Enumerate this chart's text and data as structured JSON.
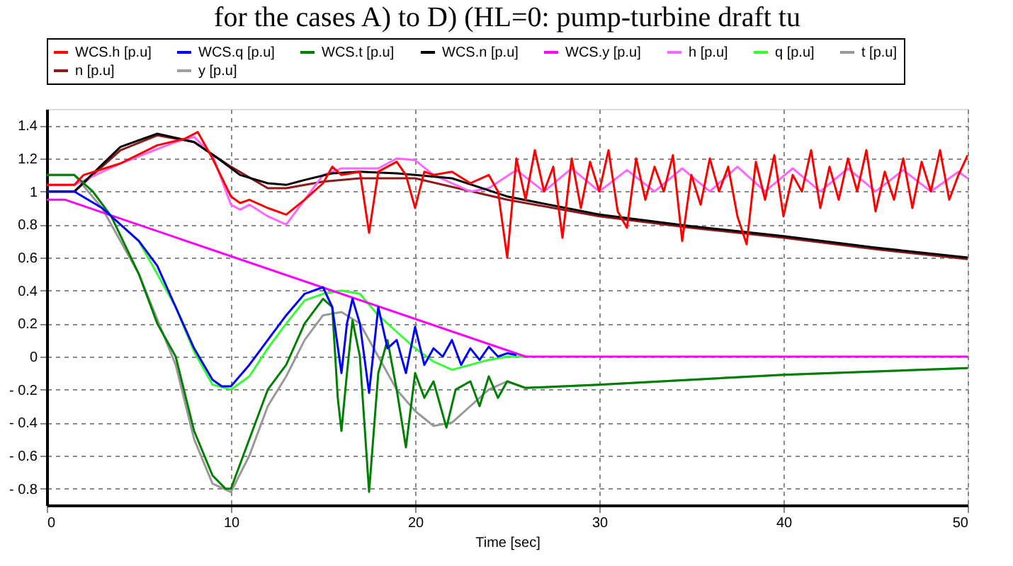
{
  "chart_data": {
    "type": "line",
    "title": "for the cases A) to D) (HL=0: pump-turbine draft tu",
    "xlabel": "Time  [sec]",
    "xlim": [
      0,
      50
    ],
    "xticks": [
      0,
      10,
      20,
      30,
      40,
      50
    ],
    "ylim": [
      -0.9,
      1.5
    ],
    "yticks": [
      {
        "value": -0.8,
        "label": "- 0.8"
      },
      {
        "value": -0.6,
        "label": "- 0.6"
      },
      {
        "value": -0.4,
        "label": "- 0.4"
      },
      {
        "value": -0.2,
        "label": "- 0.2"
      },
      0,
      0.2,
      0.4,
      0.6,
      0.8,
      1,
      1.2,
      1.4
    ],
    "grid": true,
    "legend": "top",
    "line_style": "solid",
    "marker": "none",
    "series": [
      {
        "name": "WCS.h [p.u]",
        "color": "#ff0000",
        "x": [
          0,
          1.5,
          2,
          4,
          6,
          7.5,
          8.2,
          9,
          10,
          10.5,
          11,
          12,
          13,
          14,
          15,
          15.5,
          16,
          17,
          17.5,
          18,
          19,
          19.5,
          20,
          20.5,
          21,
          22,
          23,
          24,
          24.5,
          25,
          25.5,
          26,
          26.5,
          27,
          27.5,
          28,
          28.5,
          29,
          29.5,
          30,
          30.5,
          31,
          31.5,
          32,
          32.5,
          33,
          33.5,
          34,
          34.5,
          35,
          35.5,
          36,
          36.5,
          37,
          37.5,
          38,
          38.5,
          39,
          39.5,
          40,
          40.5,
          41,
          41.5,
          42,
          42.5,
          43,
          43.5,
          44,
          44.5,
          45,
          45.5,
          46,
          46.5,
          47,
          47.5,
          48,
          48.5,
          49,
          49.5,
          50
        ],
        "values": [
          1.04,
          1.04,
          1.1,
          1.17,
          1.28,
          1.32,
          1.36,
          1.2,
          0.97,
          0.93,
          0.95,
          0.9,
          0.86,
          0.95,
          1.05,
          1.15,
          1.1,
          1.12,
          0.75,
          1.12,
          1.18,
          1.1,
          0.9,
          1.12,
          1.1,
          1.12,
          1.05,
          1.1,
          1.0,
          0.6,
          1.2,
          0.95,
          1.25,
          1.0,
          1.15,
          0.72,
          1.2,
          0.9,
          1.18,
          1.0,
          1.25,
          0.88,
          0.78,
          1.2,
          0.95,
          1.15,
          1.0,
          1.22,
          0.7,
          1.1,
          0.92,
          1.2,
          1.0,
          1.15,
          0.85,
          0.68,
          1.18,
          0.95,
          1.22,
          0.85,
          1.1,
          1.0,
          1.25,
          0.9,
          1.15,
          0.95,
          1.2,
          1.0,
          1.25,
          0.88,
          1.12,
          0.95,
          1.2,
          0.9,
          1.18,
          1.0,
          1.25,
          0.95,
          1.1,
          1.22
        ]
      },
      {
        "name": "WCS.q [p.u]",
        "color": "#0000ff",
        "x": [
          0,
          1.5,
          3,
          5,
          6,
          7,
          8,
          9,
          9.5,
          10,
          11,
          12,
          13,
          14,
          15,
          15.5,
          16,
          16.3,
          16.6,
          17,
          17.5,
          18,
          18.5,
          19,
          19.5,
          20,
          20.5,
          21,
          21.5,
          22,
          22.5,
          23,
          23.5,
          24,
          24.5,
          25,
          25.5
        ],
        "values": [
          1.0,
          1.0,
          0.9,
          0.7,
          0.55,
          0.3,
          0.05,
          -0.14,
          -0.18,
          -0.18,
          -0.05,
          0.1,
          0.25,
          0.38,
          0.42,
          0.3,
          -0.1,
          0.2,
          0.35,
          0.2,
          -0.22,
          0.3,
          0.05,
          0.1,
          -0.1,
          0.18,
          -0.05,
          0.05,
          0.0,
          0.1,
          -0.05,
          0.05,
          -0.02,
          0.06,
          0.0,
          0.02,
          0.01
        ]
      },
      {
        "name": "WCS.t [p.u]",
        "color": "#008000",
        "x": [
          0,
          1.5,
          2.5,
          3.5,
          5,
          6,
          7,
          8,
          9,
          9.7,
          10,
          11,
          12,
          13,
          14,
          15,
          15.5,
          15.8,
          16,
          16.3,
          16.6,
          17,
          17.5,
          18,
          18.5,
          19,
          19.5,
          20,
          20.5,
          21,
          21.7,
          22.2,
          23,
          23.5,
          24,
          24.5,
          25,
          26,
          30,
          35,
          40,
          45,
          50
        ],
        "values": [
          1.1,
          1.1,
          1.0,
          0.85,
          0.5,
          0.2,
          0.0,
          -0.45,
          -0.72,
          -0.8,
          -0.8,
          -0.5,
          -0.2,
          -0.05,
          0.2,
          0.35,
          0.3,
          -0.25,
          -0.45,
          -0.1,
          0.22,
          0.0,
          -0.82,
          -0.1,
          0.1,
          -0.2,
          -0.55,
          -0.1,
          -0.25,
          -0.15,
          -0.43,
          -0.2,
          -0.15,
          -0.3,
          -0.12,
          -0.25,
          -0.15,
          -0.19,
          -0.17,
          -0.14,
          -0.11,
          -0.09,
          -0.07
        ]
      },
      {
        "name": "WCS.n [p.u]",
        "color": "#000000",
        "x": [
          0,
          1.5,
          4,
          6,
          8,
          9.3,
          10.5,
          12,
          13,
          14,
          15.5,
          17,
          19,
          20,
          22,
          25,
          30,
          35,
          40,
          45,
          50
        ],
        "values": [
          1.0,
          1.0,
          1.27,
          1.35,
          1.3,
          1.2,
          1.1,
          1.05,
          1.04,
          1.07,
          1.11,
          1.12,
          1.11,
          1.1,
          1.08,
          0.97,
          0.86,
          0.79,
          0.73,
          0.66,
          0.6
        ]
      },
      {
        "name": "WCS.y [p.u]",
        "color": "#ff00ff",
        "x": [
          0,
          1,
          26,
          50
        ],
        "values": [
          0.95,
          0.95,
          0.0,
          0.0
        ]
      },
      {
        "name": "h [p.u]",
        "color": "#ff66ff",
        "x": [
          0,
          1.5,
          4,
          7,
          8,
          9,
          10,
          10.5,
          11,
          12,
          13,
          14,
          15,
          16,
          18,
          19,
          20,
          21,
          22,
          23,
          24,
          25.5,
          27,
          28.5,
          30,
          31.5,
          33,
          34.5,
          36,
          37.5,
          39,
          40.5,
          42,
          43.5,
          45,
          46.5,
          48,
          49.5,
          50
        ],
        "values": [
          1.04,
          1.04,
          1.17,
          1.3,
          1.33,
          1.22,
          0.92,
          0.89,
          0.92,
          0.85,
          0.8,
          0.95,
          1.1,
          1.14,
          1.14,
          1.2,
          1.19,
          1.1,
          1.05,
          1.0,
          1.02,
          1.13,
          1.0,
          1.14,
          1.0,
          1.13,
          1.0,
          1.14,
          1.0,
          1.15,
          1.0,
          1.14,
          1.0,
          1.14,
          1.0,
          1.13,
          1.0,
          1.12,
          1.08
        ]
      },
      {
        "name": "q [p.u]",
        "color": "#33ff33",
        "x": [
          null,
          null,
          3,
          5,
          7,
          8,
          9,
          10,
          11,
          12,
          13,
          14,
          15,
          16,
          17,
          18,
          19,
          20,
          21,
          22,
          23,
          24,
          25,
          26
        ],
        "values": [
          null,
          null,
          0.9,
          0.7,
          0.3,
          0.03,
          -0.17,
          -0.2,
          -0.12,
          0.05,
          0.2,
          0.34,
          0.38,
          0.4,
          0.38,
          0.25,
          0.15,
          0.05,
          -0.03,
          -0.08,
          -0.05,
          -0.02,
          0.0,
          0.0
        ]
      },
      {
        "name": "t [p.u]",
        "color": "#999999",
        "x": [
          0,
          1.5,
          3,
          5,
          7,
          8,
          9,
          10,
          11,
          12,
          13,
          14,
          15,
          16,
          17,
          18,
          19,
          20,
          21,
          22,
          23,
          24,
          25,
          26,
          30,
          40,
          50
        ],
        "values": [
          1.1,
          1.1,
          0.9,
          0.5,
          -0.05,
          -0.5,
          -0.77,
          -0.82,
          -0.6,
          -0.3,
          -0.12,
          0.1,
          0.25,
          0.27,
          0.2,
          0.0,
          -0.2,
          -0.33,
          -0.42,
          -0.4,
          -0.3,
          -0.2,
          -0.15,
          -0.19,
          -0.17,
          -0.11,
          -0.07
        ]
      },
      {
        "name": "n [p.u]",
        "color": "#8b1a1a",
        "x": [
          0,
          1.5,
          4,
          6,
          8,
          10,
          12,
          13,
          15,
          17,
          20,
          25,
          30,
          35,
          40,
          45,
          50
        ],
        "values": [
          1.0,
          1.0,
          1.25,
          1.34,
          1.3,
          1.15,
          1.02,
          1.02,
          1.06,
          1.08,
          1.08,
          0.95,
          0.85,
          0.78,
          0.72,
          0.65,
          0.59
        ]
      },
      {
        "name": "y [p.u]",
        "color": "#a0a0a0",
        "x": [
          null
        ],
        "values": [
          null
        ]
      }
    ]
  }
}
